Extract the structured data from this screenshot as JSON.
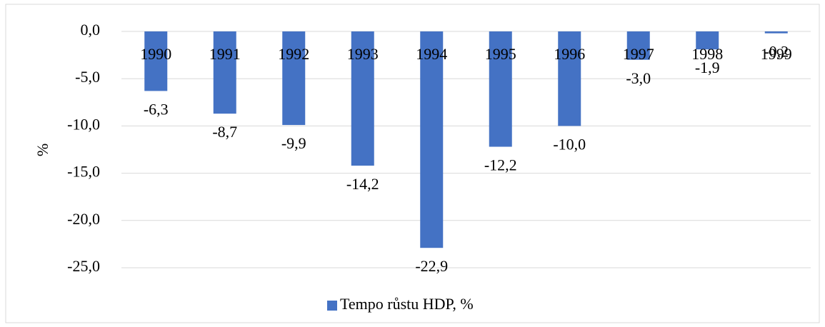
{
  "chart_data": {
    "type": "bar",
    "categories": [
      "1990",
      "1991",
      "1992",
      "1993",
      "1994",
      "1995",
      "1996",
      "1997",
      "1998",
      "1999"
    ],
    "series": [
      {
        "name": "Tempo růstu HDP, %",
        "color": "#4472c4",
        "values": [
          -6.3,
          -8.7,
          -9.9,
          -14.2,
          -22.9,
          -12.2,
          -10.0,
          -3.0,
          -1.9,
          -0.2
        ],
        "value_labels": [
          "-6,3",
          "-8,7",
          "-9,9",
          "-14,2",
          "-22,9",
          "-12,2",
          "-10,0",
          "-3,0",
          "-1,9",
          "-0,2"
        ]
      }
    ],
    "y_label": "%",
    "ylim": [
      -25,
      0
    ],
    "yticks": [
      {
        "value": 0,
        "label": "0,0"
      },
      {
        "value": -5,
        "label": "-5,0"
      },
      {
        "value": -10,
        "label": "-10,0"
      },
      {
        "value": -15,
        "label": "-15,0"
      },
      {
        "value": -20,
        "label": "-20,0"
      },
      {
        "value": -25,
        "label": "-25,0"
      }
    ],
    "grid": true,
    "legend": "bottom"
  }
}
